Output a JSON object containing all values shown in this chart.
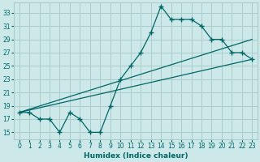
{
  "xlabel": "Humidex (Indice chaleur)",
  "ylabel": "",
  "bg_color": "#cce8e8",
  "grid_color": "#aacccc",
  "line_color": "#006666",
  "x_ticks": [
    0,
    1,
    2,
    3,
    4,
    5,
    6,
    7,
    8,
    9,
    10,
    11,
    12,
    13,
    14,
    15,
    16,
    17,
    18,
    19,
    20,
    21,
    22,
    23
  ],
  "y_ticks": [
    15,
    17,
    19,
    21,
    23,
    25,
    27,
    29,
    31,
    33
  ],
  "xlim": [
    -0.5,
    23.5
  ],
  "ylim": [
    14.0,
    34.5
  ],
  "line1_x": [
    0,
    1,
    2,
    3,
    4,
    5,
    6,
    7,
    8,
    9,
    10,
    11,
    12,
    13,
    14,
    15,
    16,
    17,
    18,
    19,
    20,
    21,
    22,
    23
  ],
  "line1_y": [
    18,
    18,
    17,
    17,
    15,
    18,
    17,
    15,
    15,
    19,
    23,
    25,
    27,
    30,
    34,
    32,
    32,
    32,
    31,
    29,
    29,
    27,
    27,
    26
  ],
  "line2_x": [
    0,
    23
  ],
  "line2_y": [
    18,
    29
  ],
  "line3_x": [
    0,
    23
  ],
  "line3_y": [
    18,
    26
  ]
}
